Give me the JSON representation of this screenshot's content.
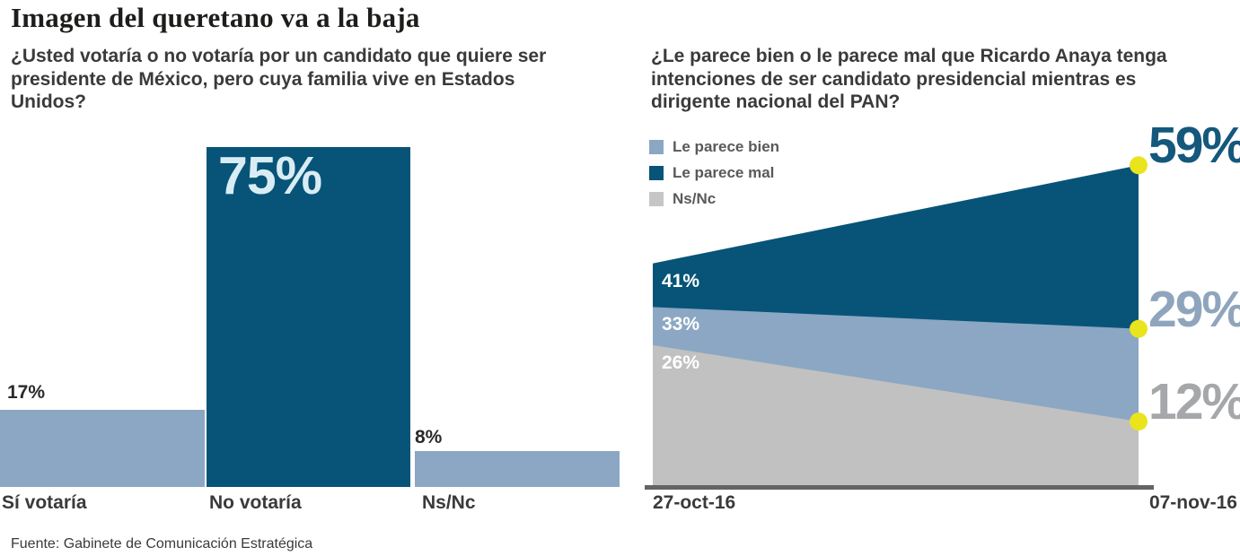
{
  "title": "Imagen del queretano va a la baja",
  "source": "Fuente: Gabinete de Comunicación Estratégica",
  "chart_data": [
    {
      "type": "bar",
      "question": "¿Usted votaría o no votaría por un candidato que quiere ser presidente de México, pero cuya familia vive en Estados Unidos?",
      "categories": [
        "Sí votaría",
        "No votaría",
        "Ns/Nc"
      ],
      "values": [
        17,
        75,
        8
      ],
      "value_labels": [
        "17%",
        "75%",
        "8%"
      ],
      "unit": "percent",
      "ylim": [
        0,
        80
      ],
      "grid": false,
      "bar_colors": [
        "#8ba7c3",
        "#075478",
        "#8ba7c3"
      ]
    },
    {
      "type": "area",
      "question": "¿Le parece bien o le parece mal que Ricardo Anaya tenga intenciones de ser candidato presidencial mientras es dirigente nacional del PAN?",
      "x": [
        "27-oct-16",
        "07-nov-16"
      ],
      "series": [
        {
          "name": "Le parece mal",
          "values": [
            41,
            59
          ],
          "color": "#075478",
          "label_color": "#14587c",
          "start_label": "41%",
          "end_label": "59%"
        },
        {
          "name": "Le parece bien",
          "values": [
            33,
            29
          ],
          "color": "#8ba7c3",
          "label_color": "#8fa5bd",
          "start_label": "33%",
          "end_label": "29%"
        },
        {
          "name": "Ns/Nc",
          "values": [
            26,
            12
          ],
          "color": "#c1c1c1",
          "label_color": "#a5a7aa",
          "start_label": "26%",
          "end_label": "12%"
        }
      ],
      "legend": [
        "Le parece bien",
        "Le parece mal",
        "Ns/Nc"
      ],
      "legend_colors": [
        "#8ba7c3",
        "#075478",
        "#c6c6c6"
      ],
      "legend_position": "top-left",
      "marker_color": "#e9e41c",
      "ylim": [
        0,
        60
      ],
      "grid": false
    }
  ]
}
